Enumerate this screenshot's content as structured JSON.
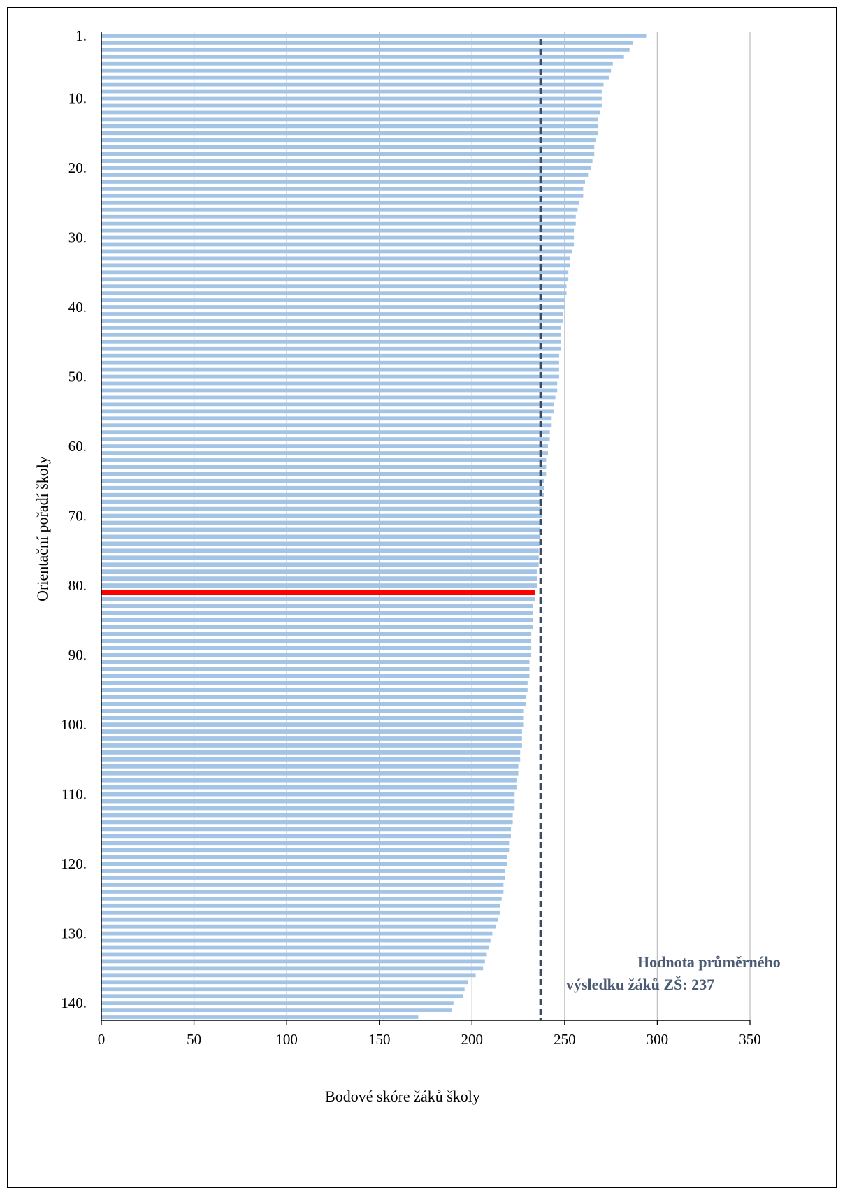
{
  "chart_data": {
    "type": "bar",
    "orientation": "horizontal",
    "xlabel": "Bodové skóre žáků školy",
    "ylabel": "Orientační pořadí školy",
    "xlim": [
      0,
      350
    ],
    "xticks": [
      0,
      50,
      100,
      150,
      200,
      250,
      300,
      350
    ],
    "xtick_labels": [
      "0",
      "50",
      "100",
      "150",
      "200",
      "250",
      "300",
      "350"
    ],
    "ytick_labels": [
      {
        "rank": 1,
        "label": "1."
      },
      {
        "rank": 10,
        "label": "10."
      },
      {
        "rank": 20,
        "label": "20."
      },
      {
        "rank": 30,
        "label": "30."
      },
      {
        "rank": 40,
        "label": "40."
      },
      {
        "rank": 50,
        "label": "50."
      },
      {
        "rank": 60,
        "label": "60."
      },
      {
        "rank": 70,
        "label": "70."
      },
      {
        "rank": 80,
        "label": "80."
      },
      {
        "rank": 90,
        "label": "90."
      },
      {
        "rank": 100,
        "label": "100."
      },
      {
        "rank": 110,
        "label": "110."
      },
      {
        "rank": 120,
        "label": "120."
      },
      {
        "rank": 130,
        "label": "130."
      },
      {
        "rank": 140,
        "label": "140."
      }
    ],
    "grid": "vertical",
    "values": [
      294,
      287,
      285,
      282,
      276,
      275,
      274,
      271,
      270,
      270,
      270,
      269,
      268,
      268,
      268,
      267,
      266,
      266,
      265,
      264,
      263,
      261,
      260,
      260,
      258,
      257,
      256,
      256,
      255,
      255,
      255,
      254,
      253,
      253,
      252,
      252,
      251,
      251,
      250,
      250,
      249,
      249,
      248,
      248,
      248,
      248,
      247,
      247,
      247,
      247,
      246,
      246,
      245,
      244,
      244,
      243,
      243,
      242,
      242,
      241,
      241,
      240,
      240,
      240,
      239,
      239,
      239,
      238,
      238,
      238,
      238,
      237,
      237,
      237,
      236,
      236,
      236,
      235,
      235,
      235,
      234,
      234,
      233,
      233,
      233,
      233,
      232,
      232,
      232,
      232,
      231,
      231,
      231,
      230,
      230,
      229,
      229,
      228,
      228,
      228,
      227,
      227,
      227,
      226,
      226,
      225,
      225,
      224,
      224,
      223,
      223,
      223,
      222,
      222,
      221,
      221,
      220,
      220,
      219,
      219,
      218,
      218,
      217,
      217,
      216,
      215,
      215,
      214,
      213,
      211,
      210,
      209,
      208,
      207,
      206,
      202,
      198,
      196,
      195,
      190,
      189,
      171
    ],
    "highlight": {
      "rank": 81,
      "value": 234,
      "color": "#ff0000"
    },
    "reference_line": {
      "value": 237,
      "style": "dashed",
      "color": "#3b4b63"
    },
    "annotation": {
      "lines": [
        "Hodnota průměrného",
        "výsledku žáků ZŠ: 237"
      ],
      "color": "#4a5b73"
    },
    "colors": {
      "bar": "#a4c4e6",
      "gridline": "#bfbfbf",
      "axis": "#000000"
    }
  }
}
